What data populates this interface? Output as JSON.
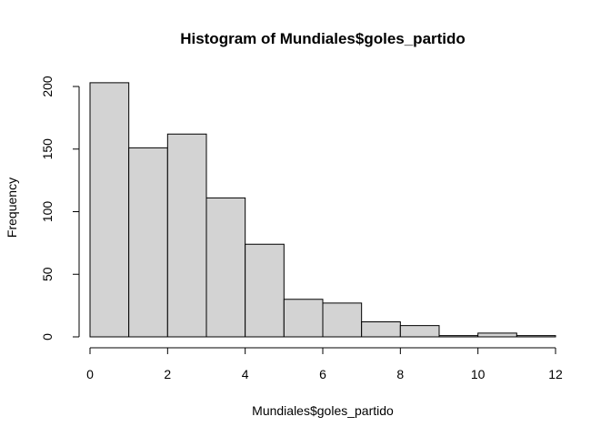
{
  "chart_data": {
    "type": "bar",
    "subtype": "histogram",
    "title": "Histogram of Mundiales$goles_partido",
    "xlabel": "Mundiales$goles_partido",
    "ylabel": "Frequency",
    "bins": [
      {
        "from": 0,
        "to": 1,
        "value": 203
      },
      {
        "from": 1,
        "to": 2,
        "value": 151
      },
      {
        "from": 2,
        "to": 3,
        "value": 162
      },
      {
        "from": 3,
        "to": 4,
        "value": 111
      },
      {
        "from": 4,
        "to": 5,
        "value": 74
      },
      {
        "from": 5,
        "to": 6,
        "value": 30
      },
      {
        "from": 6,
        "to": 7,
        "value": 27
      },
      {
        "from": 7,
        "to": 8,
        "value": 12
      },
      {
        "from": 8,
        "to": 9,
        "value": 9
      },
      {
        "from": 9,
        "to": 10,
        "value": 1
      },
      {
        "from": 10,
        "to": 11,
        "value": 3
      },
      {
        "from": 11,
        "to": 12,
        "value": 1
      }
    ],
    "x_ticks": [
      "0",
      "2",
      "4",
      "6",
      "8",
      "10",
      "12"
    ],
    "y_ticks": [
      "0",
      "50",
      "100",
      "150",
      "200"
    ],
    "xlim": [
      0,
      12
    ],
    "ylim": [
      0,
      200
    ],
    "bar_color": "#d3d3d3",
    "grid": false,
    "legend": "none"
  }
}
